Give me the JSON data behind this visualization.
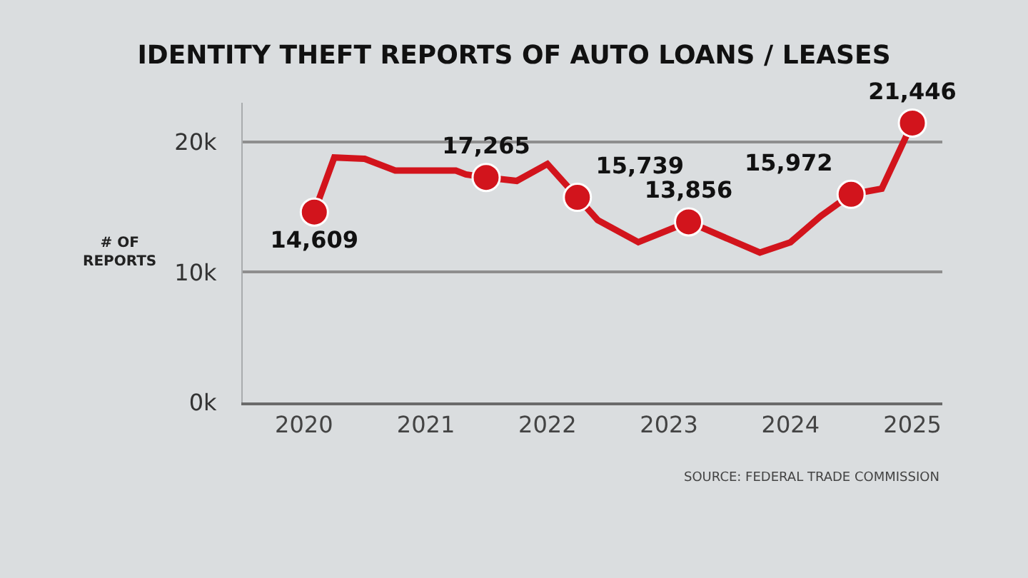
{
  "chart_data": {
    "type": "line",
    "title": "IDENTITY THEFT REPORTS OF AUTO LOANS / LEASES",
    "ylabel": "# OF REPORTS",
    "annotations": [
      "SOURCE: FEDERAL TRADE COMMISSION"
    ],
    "series": [
      {
        "color": "#d2141c",
        "line_style": "solid",
        "x": [
          "2020-02",
          "2020-04",
          "2020-07",
          "2020-10",
          "2021-04",
          "2021-05",
          "2021-07",
          "2021-10",
          "2022-01",
          "2022-04",
          "2022-06",
          "2022-10",
          "2023-03",
          "2023-10",
          "2024-01",
          "2024-04",
          "2024-07",
          "2024-10",
          "2025-01"
        ],
        "values": [
          14609,
          18800,
          18700,
          17800,
          17800,
          17500,
          17265,
          17000,
          18300,
          15739,
          14000,
          12300,
          13856,
          11500,
          12300,
          14300,
          15972,
          16400,
          21446
        ]
      },
      {
        "type": "scatter",
        "color": "#d2141c",
        "marker": "circle",
        "x": [
          "2020-02",
          "2021-07",
          "2022-04",
          "2023-03",
          "2024-07",
          "2025-01"
        ],
        "values": [
          14609,
          17265,
          15739,
          13856,
          15972,
          21446
        ],
        "value_labels": [
          "14,609",
          "17,265",
          "15,739",
          "13,856",
          "15,972",
          "21,446"
        ]
      }
    ],
    "xlim": [
      "2019-07",
      "2025-04"
    ],
    "xticks": [
      "2020",
      "2021",
      "2022",
      "2023",
      "2024",
      "2025"
    ],
    "ylim": [
      0,
      23000
    ],
    "yticks": [
      {
        "value": 0,
        "label": "0k"
      },
      {
        "value": 10000,
        "label": "10k"
      },
      {
        "value": 20000,
        "label": "20k"
      }
    ],
    "grid": "y"
  }
}
